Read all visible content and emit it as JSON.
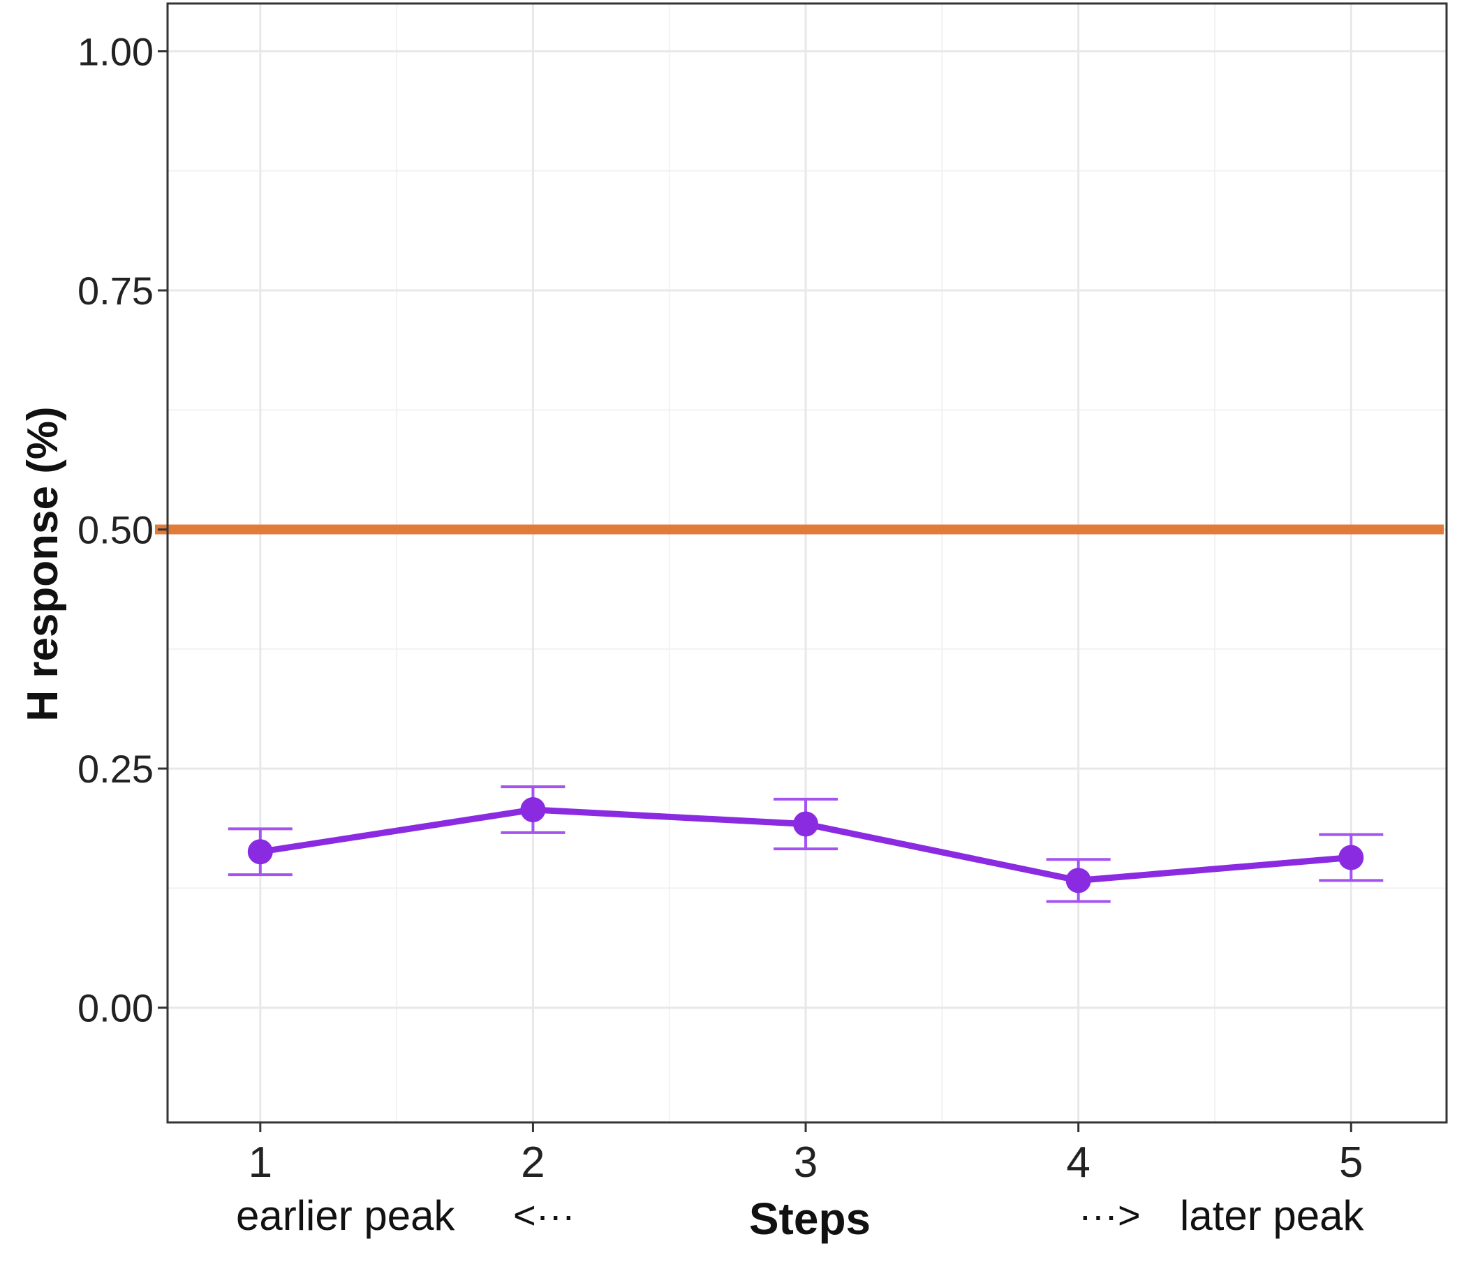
{
  "chart_data": {
    "type": "line",
    "xlabel": "Steps",
    "ylabel": "H response (%)",
    "x": [
      1,
      2,
      3,
      4,
      5
    ],
    "x_tick_labels": [
      "1",
      "2",
      "3",
      "4",
      "5"
    ],
    "xlim": [
      0.66,
      5.35
    ],
    "ylim": [
      -0.12,
      1.05
    ],
    "y_ticks": [
      0.0,
      0.25,
      0.5,
      0.75,
      1.0
    ],
    "y_tick_labels": [
      "0.00",
      "0.25",
      "0.50",
      "0.75",
      "1.00"
    ],
    "grid": true,
    "series": [
      {
        "values": [
          0.163,
          0.207,
          0.192,
          0.133,
          0.157
        ],
        "lower": [
          0.139,
          0.183,
          0.166,
          0.111,
          0.133
        ],
        "upper": [
          0.187,
          0.231,
          0.218,
          0.155,
          0.181
        ],
        "color": "#8a2be2"
      }
    ],
    "reference_line": {
      "y": 0.5,
      "color": "#e07b39"
    },
    "annotations": {
      "left": "earlier peak",
      "left_arrow": "<···",
      "right_arrow": "···>",
      "right": "later peak"
    }
  }
}
